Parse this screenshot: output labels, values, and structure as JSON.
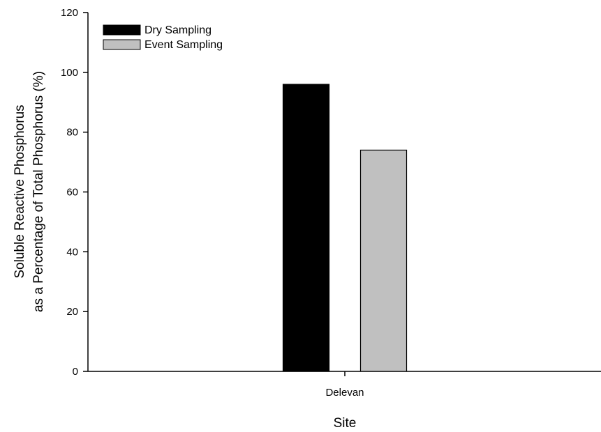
{
  "chart_data": {
    "type": "bar",
    "categories": [
      "Delevan"
    ],
    "series": [
      {
        "name": "Dry Sampling",
        "values": [
          96
        ],
        "color": "#000000"
      },
      {
        "name": "Event Sampling",
        "values": [
          74
        ],
        "color": "#c0c0c0"
      }
    ],
    "xlabel": "Site",
    "ylabel_lines": [
      "Soluble Reactive Phosphorus",
      "as a Percentage of Total Phosphorus (%)"
    ],
    "ylim": [
      0,
      120
    ],
    "yticks": [
      0,
      20,
      40,
      60,
      80,
      100,
      120
    ],
    "grid": false,
    "legend_position": "top-left"
  }
}
